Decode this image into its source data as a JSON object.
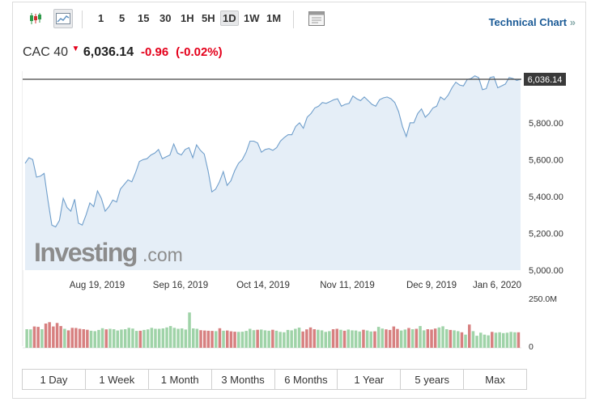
{
  "toolbar": {
    "timeframes": [
      "1",
      "5",
      "15",
      "30",
      "1H",
      "5H",
      "1D",
      "1W",
      "1M"
    ],
    "active_timeframe": "1D",
    "technical_chart_label": "Technical Chart",
    "technical_chart_arrow": "»"
  },
  "quote": {
    "name": "CAC 40",
    "price": "6,036.14",
    "change": "-0.96",
    "change_pct": "(-0.02%)",
    "down_color": "#e4001b"
  },
  "watermark": {
    "brand": "Investing",
    "suffix": ".com"
  },
  "range_tabs": [
    "1 Day",
    "1 Week",
    "1 Month",
    "3 Months",
    "6 Months",
    "1 Year",
    "5 years",
    "Max"
  ],
  "chart_data": {
    "type": "area",
    "price_label": "6,036.14",
    "y_ticks": [
      "5,000.00",
      "5,200.00",
      "5,400.00",
      "5,600.00",
      "5,800.00"
    ],
    "ylim": [
      5000,
      6080
    ],
    "x_ticks": [
      "Aug 19, 2019",
      "Sep 16, 2019",
      "Oct 14, 2019",
      "Nov 11, 2019",
      "Dec 9, 2019",
      "Jan 6, 2020"
    ],
    "values": [
      5580,
      5610,
      5600,
      5505,
      5510,
      5525,
      5380,
      5245,
      5235,
      5270,
      5390,
      5340,
      5320,
      5385,
      5255,
      5245,
      5300,
      5365,
      5345,
      5430,
      5390,
      5320,
      5345,
      5380,
      5370,
      5440,
      5465,
      5490,
      5480,
      5530,
      5590,
      5600,
      5605,
      5625,
      5635,
      5655,
      5605,
      5615,
      5625,
      5685,
      5635,
      5625,
      5655,
      5665,
      5610,
      5680,
      5650,
      5630,
      5540,
      5425,
      5440,
      5480,
      5535,
      5460,
      5485,
      5540,
      5580,
      5600,
      5640,
      5700,
      5700,
      5690,
      5640,
      5655,
      5660,
      5650,
      5665,
      5700,
      5720,
      5735,
      5735,
      5780,
      5800,
      5770,
      5830,
      5850,
      5880,
      5890,
      5910,
      5905,
      5915,
      5925,
      5930,
      5890,
      5900,
      5905,
      5945,
      5930,
      5920,
      5940,
      5920,
      5900,
      5890,
      5925,
      5935,
      5940,
      5930,
      5910,
      5860,
      5780,
      5725,
      5800,
      5800,
      5850,
      5875,
      5830,
      5850,
      5880,
      5890,
      5940,
      5925,
      5950,
      5990,
      6020,
      6005,
      6000,
      6035,
      6040,
      6055,
      6045,
      5980,
      5985,
      6045,
      6050,
      5990,
      6000,
      6010,
      6045,
      6040,
      6030,
      6036
    ],
    "volume_axis": [
      "250.0M",
      "0"
    ],
    "volume_max": 250,
    "volumes": [
      [
        96,
        1
      ],
      [
        95,
        1
      ],
      [
        110,
        0
      ],
      [
        108,
        0
      ],
      [
        96,
        1
      ],
      [
        125,
        0
      ],
      [
        132,
        0
      ],
      [
        110,
        0
      ],
      [
        128,
        0
      ],
      [
        112,
        0
      ],
      [
        98,
        1
      ],
      [
        90,
        0
      ],
      [
        103,
        0
      ],
      [
        102,
        0
      ],
      [
        98,
        0
      ],
      [
        96,
        0
      ],
      [
        93,
        0
      ],
      [
        88,
        1
      ],
      [
        86,
        1
      ],
      [
        92,
        1
      ],
      [
        101,
        1
      ],
      [
        95,
        0
      ],
      [
        98,
        1
      ],
      [
        96,
        1
      ],
      [
        89,
        1
      ],
      [
        94,
        1
      ],
      [
        96,
        1
      ],
      [
        103,
        1
      ],
      [
        99,
        1
      ],
      [
        87,
        1
      ],
      [
        88,
        0
      ],
      [
        92,
        1
      ],
      [
        95,
        1
      ],
      [
        103,
        1
      ],
      [
        98,
        1
      ],
      [
        98,
        1
      ],
      [
        100,
        1
      ],
      [
        105,
        1
      ],
      [
        112,
        1
      ],
      [
        103,
        1
      ],
      [
        98,
        1
      ],
      [
        100,
        1
      ],
      [
        94,
        1
      ],
      [
        182,
        1
      ],
      [
        100,
        1
      ],
      [
        98,
        1
      ],
      [
        91,
        0
      ],
      [
        89,
        0
      ],
      [
        88,
        0
      ],
      [
        87,
        0
      ],
      [
        86,
        1
      ],
      [
        101,
        0
      ],
      [
        88,
        1
      ],
      [
        89,
        0
      ],
      [
        85,
        0
      ],
      [
        83,
        0
      ],
      [
        82,
        1
      ],
      [
        83,
        1
      ],
      [
        87,
        1
      ],
      [
        98,
        1
      ],
      [
        91,
        1
      ],
      [
        93,
        0
      ],
      [
        94,
        1
      ],
      [
        90,
        1
      ],
      [
        88,
        1
      ],
      [
        93,
        0
      ],
      [
        88,
        1
      ],
      [
        82,
        1
      ],
      [
        80,
        1
      ],
      [
        92,
        1
      ],
      [
        90,
        1
      ],
      [
        98,
        1
      ],
      [
        104,
        1
      ],
      [
        84,
        0
      ],
      [
        95,
        0
      ],
      [
        105,
        0
      ],
      [
        96,
        0
      ],
      [
        93,
        1
      ],
      [
        90,
        1
      ],
      [
        82,
        1
      ],
      [
        86,
        1
      ],
      [
        96,
        0
      ],
      [
        98,
        0
      ],
      [
        93,
        1
      ],
      [
        88,
        0
      ],
      [
        94,
        1
      ],
      [
        90,
        1
      ],
      [
        89,
        1
      ],
      [
        84,
        1
      ],
      [
        93,
        0
      ],
      [
        89,
        1
      ],
      [
        84,
        1
      ],
      [
        85,
        0
      ],
      [
        108,
        1
      ],
      [
        99,
        1
      ],
      [
        95,
        0
      ],
      [
        92,
        0
      ],
      [
        110,
        0
      ],
      [
        97,
        0
      ],
      [
        89,
        1
      ],
      [
        94,
        1
      ],
      [
        102,
        0
      ],
      [
        96,
        1
      ],
      [
        98,
        0
      ],
      [
        112,
        1
      ],
      [
        90,
        1
      ],
      [
        96,
        0
      ],
      [
        94,
        0
      ],
      [
        99,
        0
      ],
      [
        105,
        1
      ],
      [
        111,
        1
      ],
      [
        96,
        1
      ],
      [
        92,
        0
      ],
      [
        90,
        1
      ],
      [
        86,
        1
      ],
      [
        80,
        0
      ],
      [
        68,
        1
      ],
      [
        120,
        0
      ],
      [
        86,
        1
      ],
      [
        62,
        1
      ],
      [
        78,
        1
      ],
      [
        68,
        1
      ],
      [
        64,
        1
      ],
      [
        82,
        0
      ],
      [
        78,
        1
      ],
      [
        80,
        1
      ],
      [
        76,
        1
      ],
      [
        78,
        1
      ],
      [
        82,
        1
      ],
      [
        80,
        1
      ],
      [
        80,
        0
      ]
    ]
  }
}
